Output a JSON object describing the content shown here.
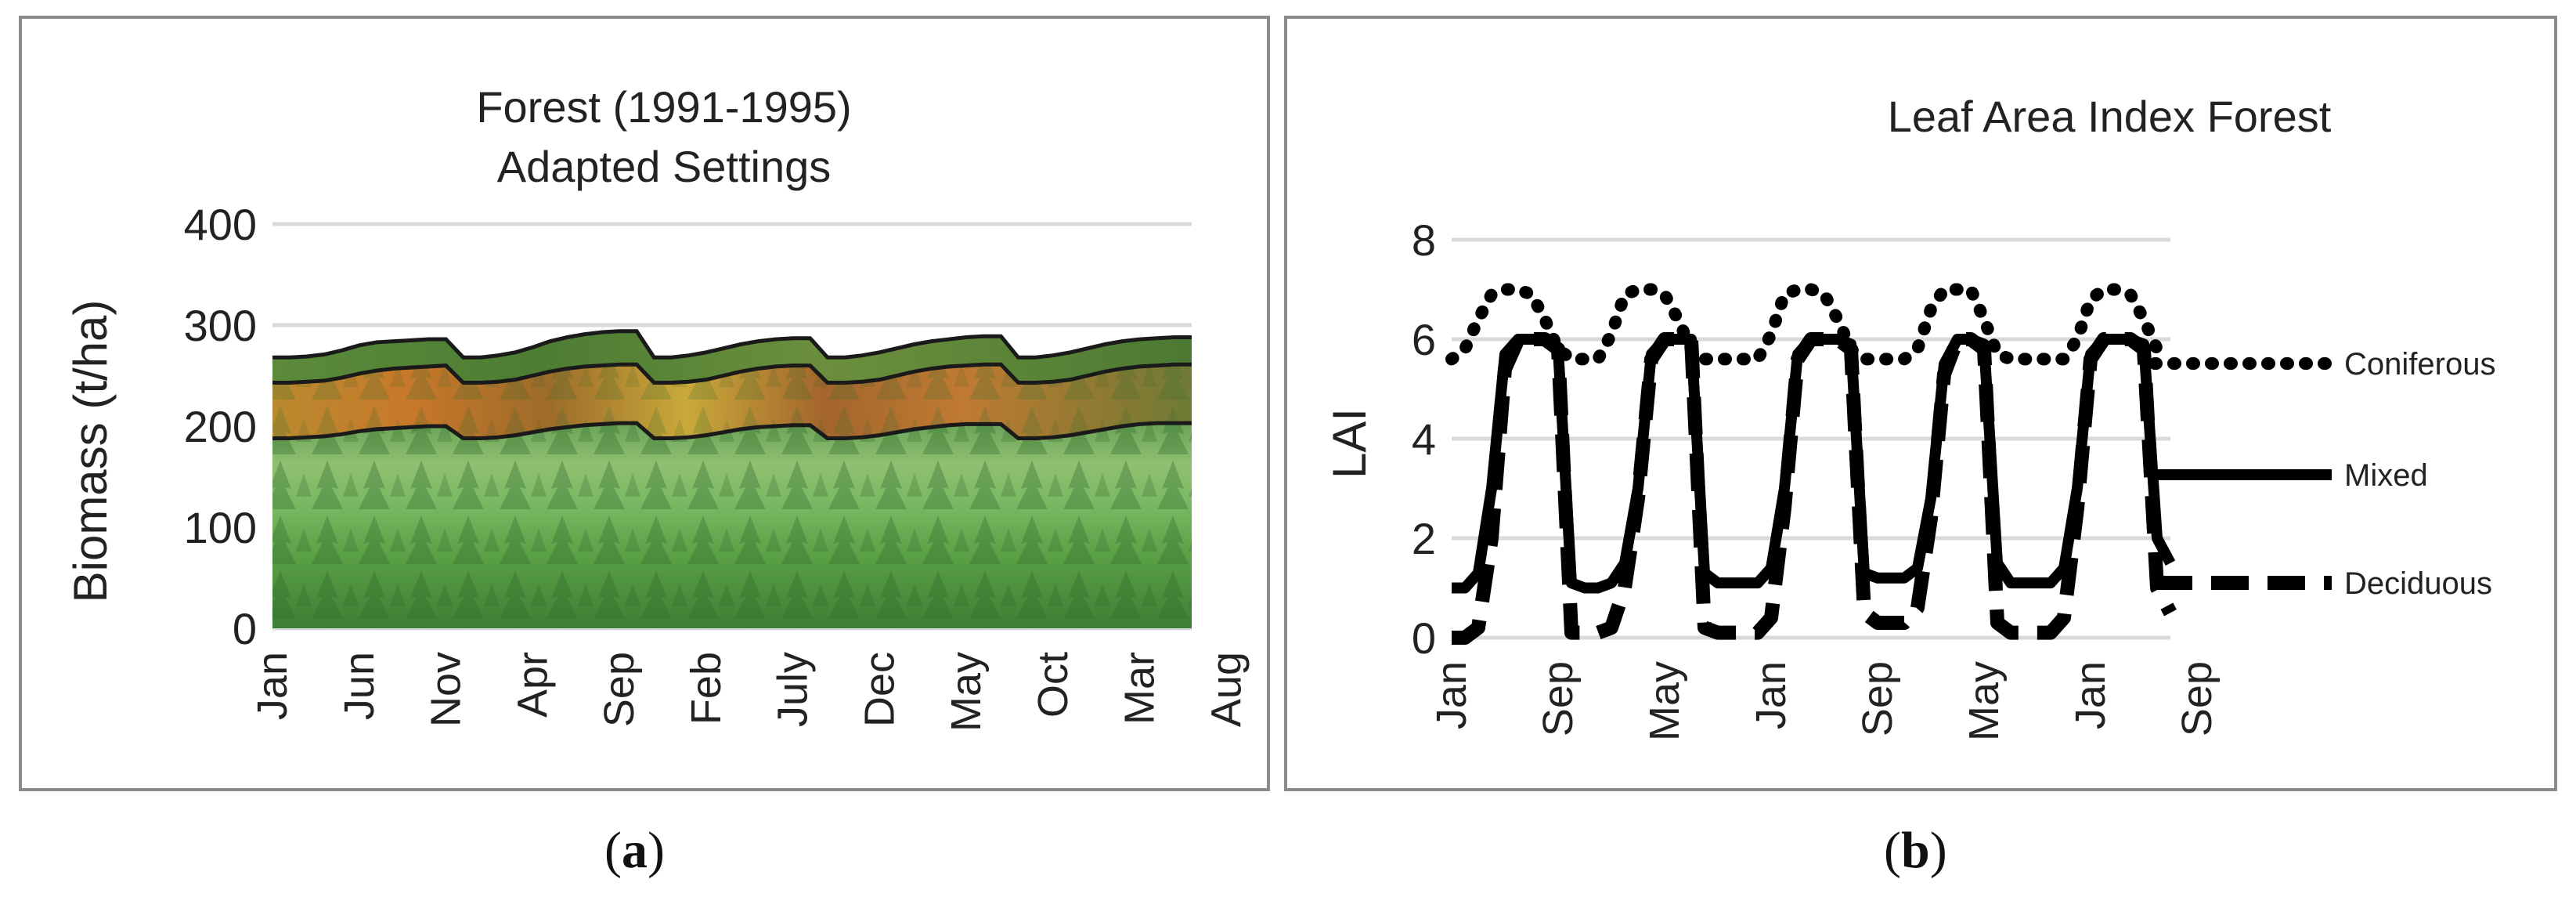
{
  "chart_data": [
    {
      "type": "area",
      "title": "Forest (1991-1995)",
      "subtitle": "Adapted Settings",
      "xlabel": "",
      "ylabel": "Biomass (t/ha)",
      "ylim": [
        0,
        400
      ],
      "y_ticks": [
        "0",
        "100",
        "200",
        "300",
        "400"
      ],
      "grid": true,
      "x_tick_labels": [
        "Jan",
        "Jun",
        "Nov",
        "Apr",
        "Sep",
        "Feb",
        "July",
        "Dec",
        "May",
        "Oct",
        "Mar",
        "Aug"
      ],
      "months_index": [
        0,
        5,
        10,
        15,
        20,
        25,
        30,
        35,
        40,
        45,
        50,
        55
      ],
      "series": [
        {
          "values": [
            188,
            188,
            189,
            190,
            192,
            195,
            197,
            198,
            199,
            200,
            200,
            188,
            188,
            189,
            191,
            194,
            197,
            199,
            201,
            202,
            203,
            203,
            188,
            188,
            189,
            191,
            194,
            197,
            199,
            200,
            201,
            201,
            188,
            188,
            189,
            191,
            194,
            197,
            199,
            201,
            202,
            202,
            202,
            188,
            188,
            189,
            191,
            194,
            197,
            200,
            202,
            203,
            203,
            203
          ]
        },
        {
          "values": [
            243,
            243,
            244,
            245,
            248,
            252,
            255,
            257,
            258,
            259,
            260,
            243,
            243,
            244,
            246,
            250,
            254,
            257,
            259,
            260,
            261,
            261,
            243,
            243,
            244,
            246,
            250,
            254,
            257,
            259,
            260,
            260,
            243,
            243,
            244,
            246,
            250,
            254,
            257,
            259,
            260,
            261,
            261,
            243,
            243,
            244,
            246,
            250,
            254,
            257,
            259,
            260,
            261,
            261
          ]
        },
        {
          "values": [
            268,
            268,
            269,
            271,
            275,
            280,
            283,
            284,
            285,
            286,
            286,
            268,
            268,
            270,
            273,
            278,
            284,
            288,
            291,
            293,
            294,
            294,
            268,
            268,
            270,
            273,
            277,
            281,
            284,
            286,
            287,
            287,
            268,
            268,
            270,
            273,
            277,
            281,
            284,
            286,
            288,
            289,
            289,
            268,
            268,
            270,
            273,
            277,
            281,
            284,
            286,
            287,
            288,
            288
          ]
        }
      ]
    },
    {
      "type": "line",
      "title": "Leaf Area Index Forest",
      "xlabel": "",
      "ylabel": "LAI",
      "ylim": [
        0,
        8
      ],
      "y_ticks": [
        "0",
        "2",
        "4",
        "6",
        "8"
      ],
      "grid": true,
      "legend_position": "right",
      "x_tick_labels": [
        "Jan",
        "Sep",
        "May",
        "Jan",
        "Sep",
        "May",
        "Jan",
        "Sep"
      ],
      "months_index": [
        0,
        8,
        16,
        24,
        32,
        40,
        48,
        56
      ],
      "series": [
        {
          "name": "Coniferous",
          "values": [
            5.6,
            5.8,
            6.4,
            6.9,
            7.0,
            7.0,
            6.9,
            6.4,
            5.8,
            5.6,
            5.6,
            5.6,
            6.1,
            6.9,
            7.0,
            7.0,
            6.9,
            6.4,
            5.8,
            5.6,
            5.6,
            5.6,
            5.6,
            5.6,
            6.1,
            6.9,
            7.0,
            7.0,
            6.9,
            6.4,
            5.8,
            5.6,
            5.6,
            5.6,
            5.6,
            5.8,
            6.6,
            7.0,
            7.0,
            7.0,
            6.4,
            5.7,
            5.6,
            5.6,
            5.6,
            5.6,
            5.6,
            6.0,
            6.8,
            7.0,
            7.0,
            6.9,
            6.4,
            5.8,
            5.8
          ]
        },
        {
          "name": "Mixed",
          "values": [
            1.0,
            1.0,
            1.3,
            3.0,
            5.7,
            6.0,
            6.0,
            6.0,
            5.8,
            1.1,
            1.0,
            1.0,
            1.1,
            1.5,
            3.0,
            5.7,
            6.0,
            6.0,
            6.0,
            1.3,
            1.1,
            1.1,
            1.1,
            1.1,
            1.4,
            3.0,
            5.7,
            6.0,
            6.0,
            6.0,
            5.9,
            1.3,
            1.2,
            1.2,
            1.2,
            1.4,
            2.8,
            5.5,
            6.0,
            6.0,
            5.9,
            1.5,
            1.1,
            1.1,
            1.1,
            1.1,
            1.4,
            3.0,
            5.7,
            6.0,
            6.0,
            6.0,
            5.9,
            2.0,
            1.5
          ]
        },
        {
          "name": "Deciduous",
          "values": [
            0.0,
            0.0,
            0.2,
            2.0,
            5.4,
            6.0,
            6.0,
            6.0,
            5.8,
            0.1,
            0.1,
            0.1,
            0.2,
            1.0,
            2.8,
            5.6,
            6.0,
            6.0,
            6.0,
            0.2,
            0.1,
            0.1,
            0.1,
            0.1,
            0.4,
            2.6,
            5.6,
            6.0,
            6.0,
            6.0,
            5.8,
            0.5,
            0.3,
            0.3,
            0.3,
            0.6,
            2.4,
            5.3,
            6.0,
            6.0,
            5.8,
            0.3,
            0.1,
            0.1,
            0.1,
            0.1,
            0.4,
            2.6,
            5.6,
            6.0,
            6.0,
            6.0,
            5.8,
            1.0,
            0.5
          ]
        }
      ]
    }
  ],
  "captions": {
    "a_open": "(",
    "a_letter": "a",
    "a_close": ")",
    "b_open": "(",
    "b_letter": "b",
    "b_close": ")"
  },
  "colors": {
    "grid": "#d9d9d9",
    "axis_text": "#222222",
    "foliage_light": "#8fcf73",
    "foliage_mid": "#5aa045",
    "foliage_dark": "#2f6a2c",
    "autumn_orange": "#c8782a",
    "autumn_yellow": "#c9a93a"
  }
}
